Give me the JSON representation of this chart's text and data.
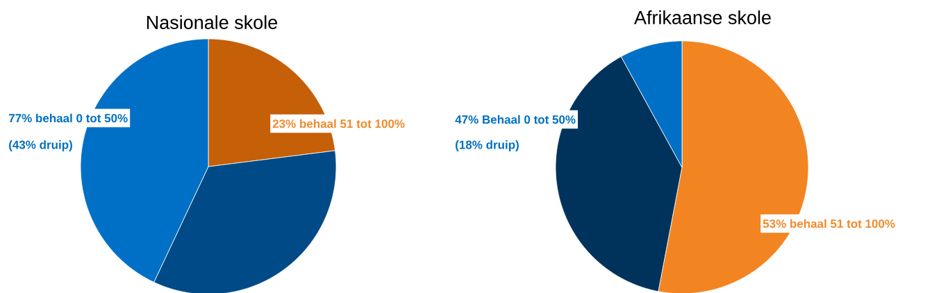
{
  "chart_data": [
    {
      "type": "pie",
      "title": "Nasionale skole",
      "categories": [
        null,
        null,
        null
      ],
      "values": [
        23,
        34,
        43
      ],
      "colors": [
        "#c55f08",
        "#004a87",
        "#0070c6"
      ],
      "annotations": [
        "77% behaal 0 tot 50%",
        "(43% druip)",
        "23% behaal 51 tot 100%"
      ]
    },
    {
      "type": "pie",
      "title": "Afrikaanse skole",
      "categories": [
        null,
        null,
        null
      ],
      "values": [
        53,
        39,
        8
      ],
      "colors": [
        "#f28522",
        "#00335c",
        "#0070c6"
      ],
      "annotations": [
        "47% Behaal 0 tot 50%",
        "(18% druip)",
        "53% behaal 51 tot 100%"
      ]
    }
  ]
}
